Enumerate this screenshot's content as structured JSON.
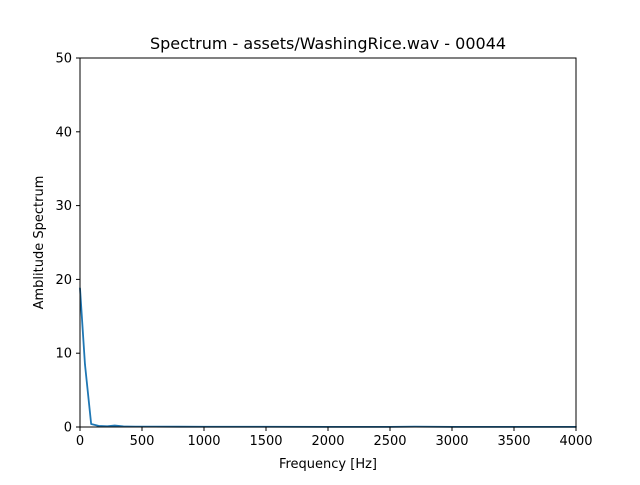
{
  "chart_data": {
    "type": "line",
    "title": "Spectrum - assets/WashingRice.wav - 00044",
    "xlabel": "Frequency [Hz]",
    "ylabel": "Amblitude Spectrum",
    "xlim": [
      0,
      4000
    ],
    "ylim": [
      0,
      50
    ],
    "xticks": [
      "0",
      "500",
      "1000",
      "1500",
      "2000",
      "2500",
      "3000",
      "3500",
      "4000"
    ],
    "yticks": [
      "0",
      "10",
      "20",
      "30",
      "40",
      "50"
    ],
    "grid": false,
    "series": [
      {
        "color": "#1f77b4",
        "x": [
          0,
          40,
          90,
          150,
          220,
          280,
          350,
          450,
          600,
          800,
          1000,
          1500,
          2000,
          2500,
          2700,
          3000,
          3500,
          4000
        ],
        "y": [
          18.8,
          8.5,
          0.4,
          0.15,
          0.1,
          0.2,
          0.08,
          0.05,
          0.05,
          0.04,
          0.03,
          0.03,
          0.02,
          0.02,
          0.05,
          0.02,
          0.02,
          0.02
        ]
      }
    ]
  }
}
